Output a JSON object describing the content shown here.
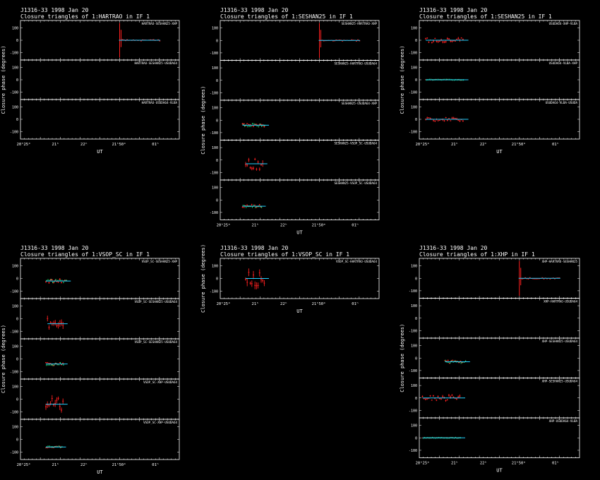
{
  "axes": {
    "ylabel": "Closure phase   (degrees)",
    "xlabel": "UT",
    "xticks": [
      "20ʰ25ᵐ",
      "21ʰ",
      "22ʰ",
      "21ʰ50ᵐ",
      "01ʰ"
    ],
    "yticks": [
      "100",
      "0",
      "-100"
    ]
  },
  "colors": {
    "background": "#000000",
    "axes": "#ffffff",
    "data": "#ff2020",
    "model": "#20ff80",
    "fit": "#20d0ff"
  },
  "chart_data": [
    {
      "type": "scatter",
      "line1": "J1316-33  1998 Jan 20",
      "line2": "Closure triangles of 1:HARTRAO in IF 1",
      "ylim": [
        -160,
        160
      ],
      "grid": false,
      "panels": [
        {
          "label": "HARTRAO-SESHAN25-XHP",
          "segments": [
            {
              "start": 0.62,
              "end": 0.88,
              "center": 0,
              "spread": 12,
              "spike": 140,
              "modelPresent": false
            }
          ]
        },
        {
          "label": "HARTRAO-SESHAN25-USUDA64",
          "segments": []
        },
        {
          "label": "HARTRAO-USUDA64-VLBA",
          "segments": []
        }
      ]
    },
    {
      "type": "scatter",
      "line1": "J1316-33  1998 Jan 20",
      "line2": "Closure triangles of 1:SESHAN25 in IF 1",
      "ylim": [
        -160,
        160
      ],
      "grid": false,
      "panels": [
        {
          "label": "SESHAN25-HARTRAO-XHP",
          "segments": [
            {
              "start": 0.62,
              "end": 0.88,
              "center": 0,
              "spread": 12,
              "spike": 140,
              "modelPresent": false
            }
          ]
        },
        {
          "label": "SESHAN25-HARTRAO-USUDA64",
          "segments": []
        },
        {
          "label": "SESHAN25-USUDA64-XHP",
          "segments": [
            {
              "start": 0.14,
              "end": 0.28,
              "center": -40,
              "spread": 30,
              "spike": 0,
              "modelPresent": true
            }
          ]
        },
        {
          "label": "SESHAN25-VSOP_SC-USUDA64",
          "segments": [
            {
              "start": 0.16,
              "end": 0.27,
              "center": -30,
              "spread": 90,
              "spike": 0,
              "modelPresent": false
            }
          ]
        },
        {
          "label": "SESHAN25-VSOP_SC-USUDA64",
          "segments": [
            {
              "start": 0.14,
              "end": 0.26,
              "center": -50,
              "spread": 25,
              "spike": 0,
              "modelPresent": true
            }
          ]
        }
      ]
    },
    {
      "type": "scatter",
      "line1": "J1316-33  1998 Jan 20",
      "line2": "Closure triangles of 1:SESHAN25 in IF 1",
      "ylim": [
        -160,
        160
      ],
      "grid": false,
      "panels": [
        {
          "label": "USUDA64-XHP-VLBA",
          "segments": [
            {
              "start": 0.04,
              "end": 0.28,
              "center": 0,
              "spread": 40,
              "spike": 0,
              "modelPresent": false
            }
          ]
        },
        {
          "label": "USUDA64-VLBA-XHP",
          "segments": [
            {
              "start": 0.04,
              "end": 0.28,
              "center": 0,
              "spread": 5,
              "spike": 0,
              "modelPresent": true
            }
          ]
        },
        {
          "label": "USUDA64-VLBA-USUDA",
          "segments": [
            {
              "start": 0.04,
              "end": 0.28,
              "center": 0,
              "spread": 35,
              "spike": 0,
              "modelPresent": false
            }
          ]
        }
      ]
    },
    {
      "type": "scatter",
      "line1": "J1316-33  1998 Jan 20",
      "line2": "Closure triangles of 1:VSOP_SC in IF 1",
      "ylim": [
        -160,
        160
      ],
      "grid": false,
      "panels": [
        {
          "label": "VSOP_SC-SESHAN25-XHP",
          "segments": [
            {
              "start": 0.16,
              "end": 0.29,
              "center": -20,
              "spread": 30,
              "spike": 0,
              "modelPresent": true
            }
          ]
        },
        {
          "label": "VSOP_SC-SESHAN25-USUDA64",
          "segments": [
            {
              "start": 0.17,
              "end": 0.27,
              "center": -40,
              "spread": 100,
              "spike": 0,
              "modelPresent": false
            }
          ]
        },
        {
          "label": "VSOP_SC-SESHAN25-USUDA64",
          "segments": [
            {
              "start": 0.16,
              "end": 0.27,
              "center": -40,
              "spread": 25,
              "spike": 0,
              "modelPresent": true
            }
          ]
        },
        {
          "label": "VSOP_SC-XHP-USUDA64",
          "segments": [
            {
              "start": 0.16,
              "end": 0.27,
              "center": -40,
              "spread": 100,
              "spike": 0,
              "modelPresent": false
            }
          ]
        },
        {
          "label": "VSOP_SC-XHP-USUDA64",
          "segments": [
            {
              "start": 0.16,
              "end": 0.26,
              "center": -60,
              "spread": 15,
              "spike": 0,
              "modelPresent": true
            }
          ]
        }
      ]
    },
    {
      "type": "scatter",
      "line1": "J1316-33  1998 Jan 20",
      "line2": "Closure triangles of 1:VSOP_SC in IF 1",
      "ylim": [
        -160,
        160
      ],
      "grid": false,
      "panels": [
        {
          "label": "VSOP_SC-HARTRAO-USUDA64",
          "segments": [
            {
              "start": 0.16,
              "end": 0.28,
              "center": 0,
              "spread": 120,
              "spike": 0,
              "modelPresent": false
            }
          ]
        }
      ]
    },
    {
      "type": "scatter",
      "line1": "J1316-33  1998 Jan 20",
      "line2": "Closure triangles of 1:XHP in IF 1",
      "ylim": [
        -160,
        160
      ],
      "grid": false,
      "panels": [
        {
          "label": "XHP-HARTRAO-SESHAN25",
          "segments": [
            {
              "start": 0.62,
              "end": 0.88,
              "center": 0,
              "spread": 12,
              "spike": 140,
              "modelPresent": false
            }
          ]
        },
        {
          "label": "XHP-HARTRAO-USUDA64",
          "segments": []
        },
        {
          "label": "XHP-SESHAN25-USUDA64",
          "segments": [
            {
              "start": 0.16,
              "end": 0.29,
              "center": -30,
              "spread": 25,
              "spike": 0,
              "modelPresent": true
            }
          ]
        },
        {
          "label": "XHP-SESHAN25-USUDA64",
          "segments": [
            {
              "start": 0.02,
              "end": 0.26,
              "center": 0,
              "spread": 45,
              "spike": 0,
              "modelPresent": false
            }
          ]
        },
        {
          "label": "XHP-USUDA64-VLBA",
          "segments": [
            {
              "start": 0.02,
              "end": 0.26,
              "center": 0,
              "spread": 5,
              "spike": 0,
              "modelPresent": true
            }
          ]
        }
      ]
    }
  ]
}
